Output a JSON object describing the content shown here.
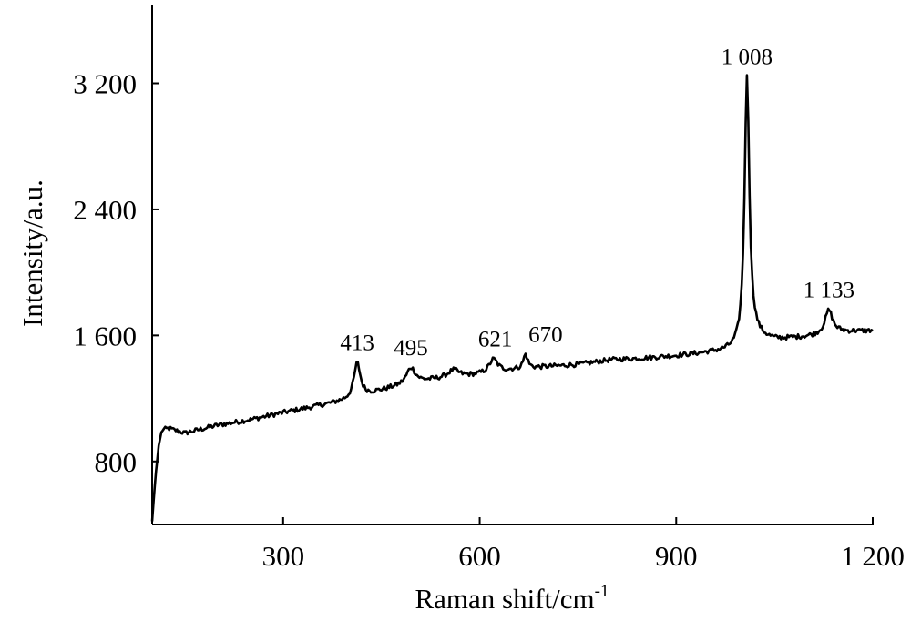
{
  "chart_data": {
    "type": "line",
    "title": "",
    "xlabel": "Raman shift/cm",
    "xlabel_sup": "-1",
    "ylabel": "Intensity/a.u.",
    "xlim": [
      100,
      1200
    ],
    "ylim": [
      400,
      3700
    ],
    "grid": false,
    "legend": "none",
    "line_color": "#000000",
    "x_ticks": [
      {
        "value": 300,
        "label": "300"
      },
      {
        "value": 600,
        "label": "600"
      },
      {
        "value": 900,
        "label": "900"
      },
      {
        "value": 1200,
        "label": "1 200"
      }
    ],
    "y_ticks": [
      {
        "value": 800,
        "label": "800"
      },
      {
        "value": 1600,
        "label": "1 600"
      },
      {
        "value": 2400,
        "label": "2 400"
      },
      {
        "value": 3200,
        "label": "3 200"
      }
    ],
    "baseline": {
      "x": [
        100,
        105,
        110,
        115,
        125,
        150,
        200,
        250,
        300,
        350,
        400,
        450,
        500,
        550,
        600,
        650,
        700,
        750,
        800,
        850,
        900,
        950,
        1000,
        1003,
        1020,
        1050,
        1100,
        1150,
        1200
      ],
      "y": [
        420,
        700,
        900,
        1000,
        1010,
        980,
        1030,
        1065,
        1110,
        1150,
        1190,
        1250,
        1300,
        1330,
        1350,
        1380,
        1400,
        1415,
        1445,
        1455,
        1470,
        1490,
        1505,
        1510,
        1580,
        1570,
        1590,
        1620,
        1630
      ]
    },
    "peaks": [
      {
        "x": 413,
        "height": 220,
        "width": 6,
        "label": "413"
      },
      {
        "x": 495,
        "height": 100,
        "width": 8,
        "label": "495"
      },
      {
        "x": 560,
        "height": 45,
        "width": 10,
        "label": ""
      },
      {
        "x": 621,
        "height": 85,
        "width": 8,
        "label": "621"
      },
      {
        "x": 670,
        "height": 90,
        "width": 4,
        "label": "670"
      },
      {
        "x": 1008,
        "height": 1710,
        "width": 4.5,
        "label": "1 008"
      },
      {
        "x": 1133,
        "height": 150,
        "width": 7,
        "label": "1 133"
      }
    ],
    "noise_amplitude": 15,
    "x_step": 2
  }
}
